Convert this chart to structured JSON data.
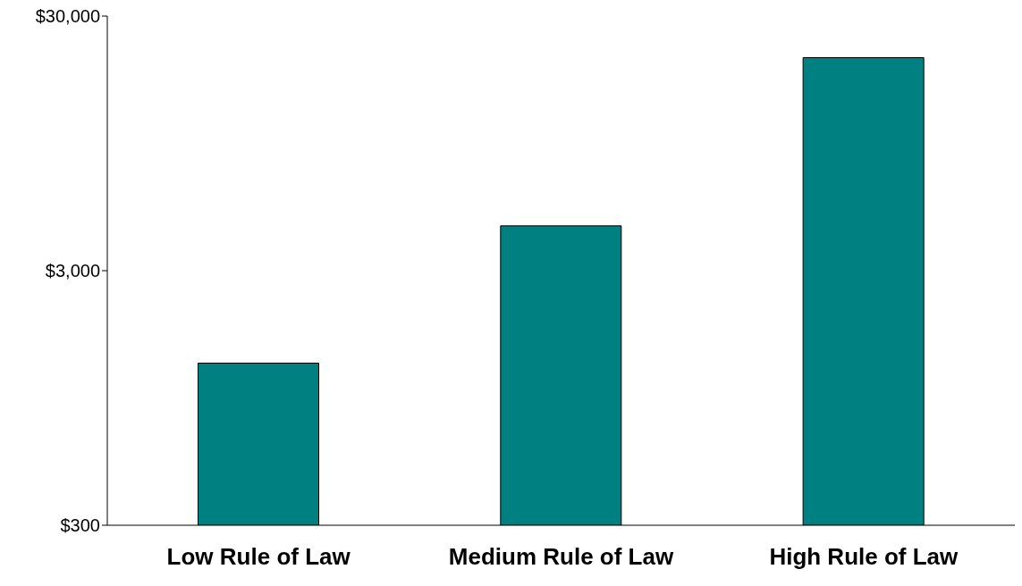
{
  "chart_data": {
    "type": "bar",
    "categories": [
      "Low Rule of Law",
      "Medium Rule of Law",
      "High Rule of Law"
    ],
    "values": [
      1300,
      4500,
      20600
    ],
    "color": "#008080",
    "log": "y",
    "ylim": [
      300,
      30000
    ],
    "yticks": [
      {
        "value": 300,
        "label": "$300"
      },
      {
        "value": 3000,
        "label": "$3,000"
      },
      {
        "value": 30000,
        "label": "$30,000"
      }
    ],
    "grid": false,
    "legend": false
  }
}
